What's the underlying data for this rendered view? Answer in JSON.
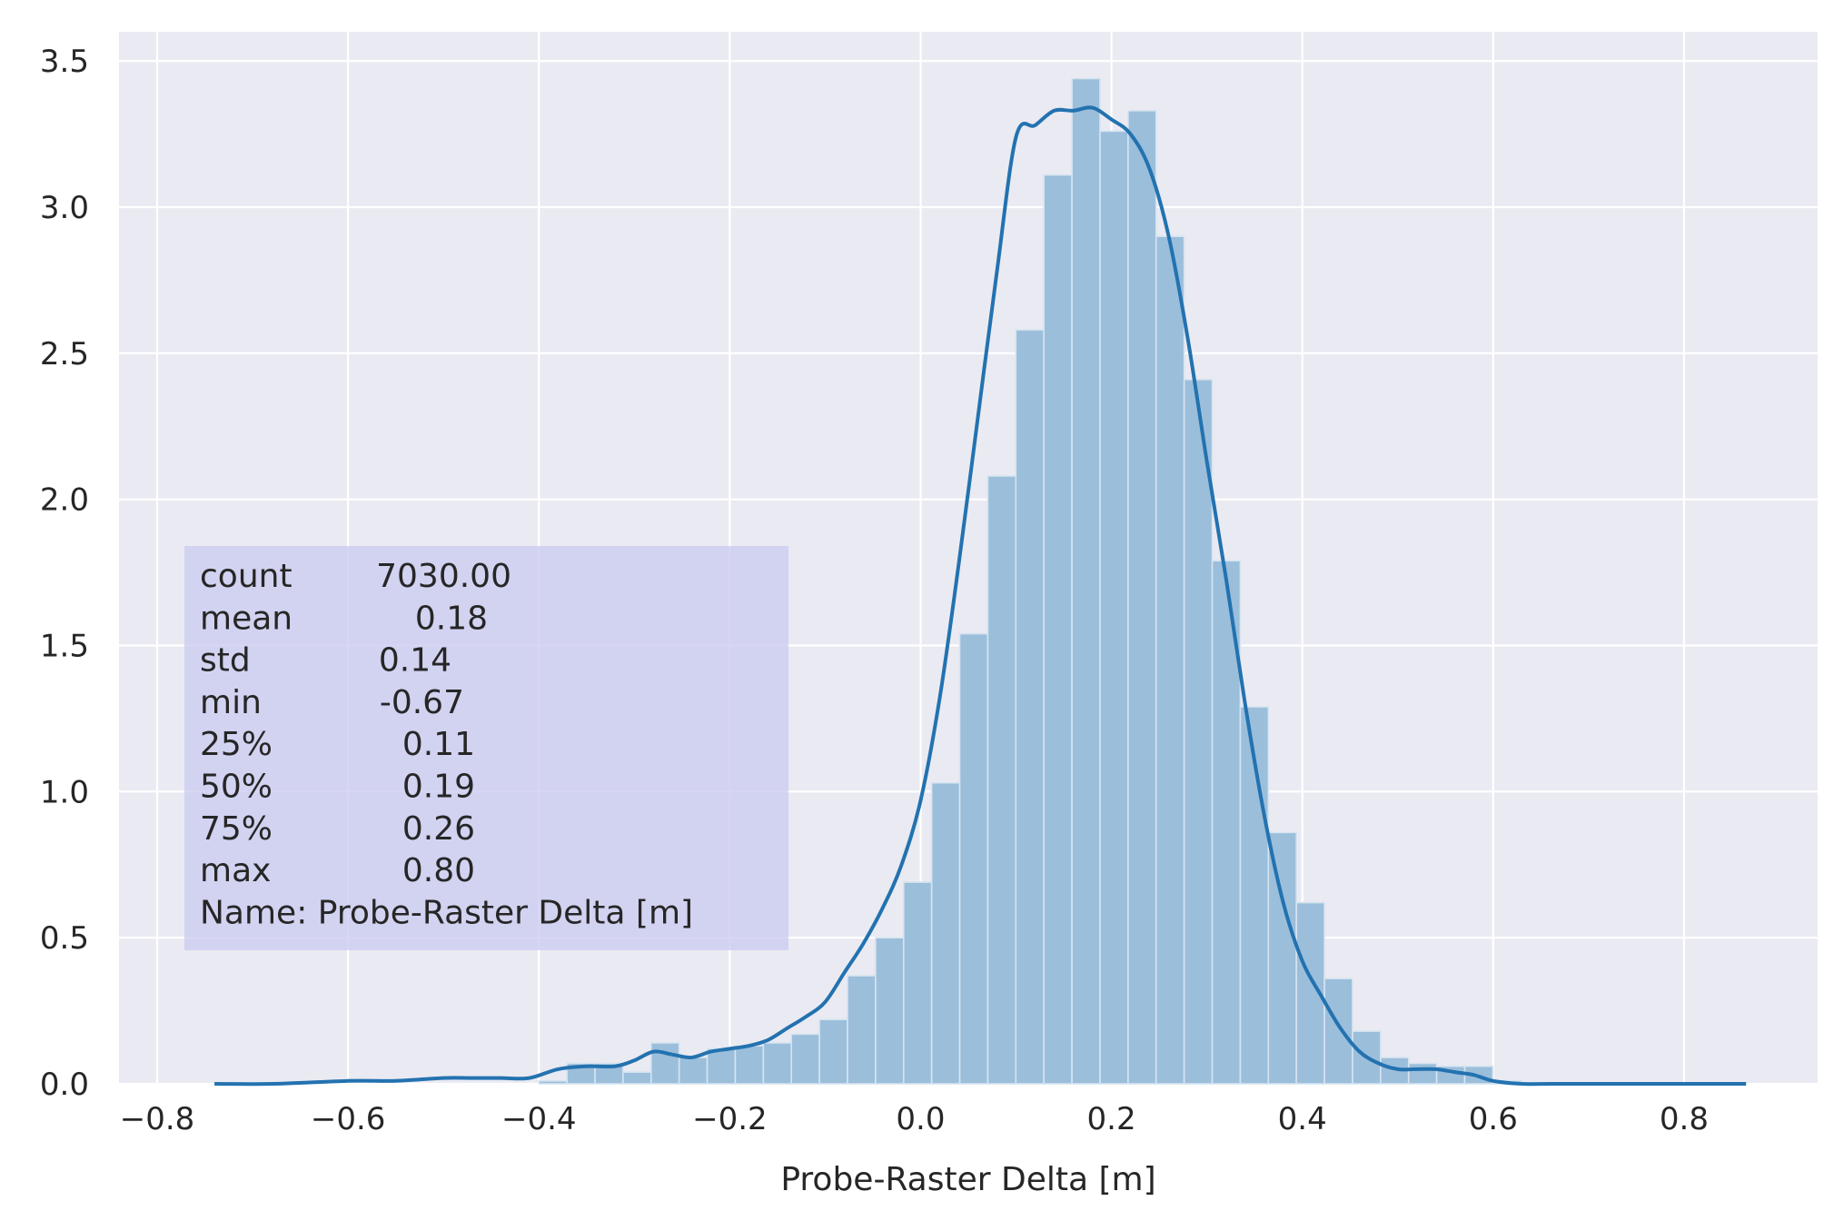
{
  "chart_data": {
    "type": "bar",
    "overlay": "kde-line",
    "title": "",
    "xlabel": "Probe-Raster Delta [m]",
    "ylabel": "",
    "xlim": [
      -0.84,
      0.94
    ],
    "ylim": [
      0,
      3.6
    ],
    "xticks": [
      -0.8,
      -0.6,
      -0.4,
      -0.2,
      0.0,
      0.2,
      0.4,
      0.6,
      0.8
    ],
    "xtick_labels": [
      "−0.8",
      "−0.6",
      "−0.4",
      "−0.2",
      "0.0",
      "0.2",
      "0.4",
      "0.6",
      "0.8"
    ],
    "yticks": [
      0.0,
      0.5,
      1.0,
      1.5,
      2.0,
      2.5,
      3.0,
      3.5
    ],
    "ytick_labels": [
      "0.0",
      "0.5",
      "1.0",
      "1.5",
      "2.0",
      "2.5",
      "3.0",
      "3.5"
    ],
    "grid": true,
    "background": "#eaeaf2",
    "bar_color": "#9bbedb",
    "bar_edge_color": "#d6e4f0",
    "line_color": "#2372b0",
    "histogram": {
      "bin_width": 0.0294,
      "bins": [
        {
          "x0": -0.4,
          "height": 0.01
        },
        {
          "x0": -0.3706,
          "height": 0.07
        },
        {
          "x0": -0.3412,
          "height": 0.07
        },
        {
          "x0": -0.3118,
          "height": 0.04
        },
        {
          "x0": -0.2824,
          "height": 0.14
        },
        {
          "x0": -0.253,
          "height": 0.09
        },
        {
          "x0": -0.2236,
          "height": 0.12
        },
        {
          "x0": -0.1942,
          "height": 0.13
        },
        {
          "x0": -0.1648,
          "height": 0.14
        },
        {
          "x0": -0.1354,
          "height": 0.17
        },
        {
          "x0": -0.106,
          "height": 0.22
        },
        {
          "x0": -0.0766,
          "height": 0.37
        },
        {
          "x0": -0.0472,
          "height": 0.5
        },
        {
          "x0": -0.0178,
          "height": 0.69
        },
        {
          "x0": 0.0116,
          "height": 1.03
        },
        {
          "x0": 0.041,
          "height": 1.54
        },
        {
          "x0": 0.0704,
          "height": 2.08
        },
        {
          "x0": 0.0998,
          "height": 2.58
        },
        {
          "x0": 0.1292,
          "height": 3.11
        },
        {
          "x0": 0.1586,
          "height": 3.44
        },
        {
          "x0": 0.188,
          "height": 3.26
        },
        {
          "x0": 0.2174,
          "height": 3.33
        },
        {
          "x0": 0.2468,
          "height": 2.9
        },
        {
          "x0": 0.2762,
          "height": 2.41
        },
        {
          "x0": 0.3056,
          "height": 1.79
        },
        {
          "x0": 0.335,
          "height": 1.29
        },
        {
          "x0": 0.3644,
          "height": 0.86
        },
        {
          "x0": 0.3938,
          "height": 0.62
        },
        {
          "x0": 0.4232,
          "height": 0.36
        },
        {
          "x0": 0.4526,
          "height": 0.18
        },
        {
          "x0": 0.482,
          "height": 0.09
        },
        {
          "x0": 0.5114,
          "height": 0.07
        },
        {
          "x0": 0.5408,
          "height": 0.06
        },
        {
          "x0": 0.5702,
          "height": 0.06
        },
        {
          "x0": 0.6,
          "height": 0.01
        }
      ]
    },
    "kde": {
      "x": [
        -0.74,
        -0.68,
        -0.6,
        -0.55,
        -0.5,
        -0.47,
        -0.44,
        -0.41,
        -0.38,
        -0.35,
        -0.32,
        -0.3,
        -0.28,
        -0.26,
        -0.24,
        -0.22,
        -0.2,
        -0.18,
        -0.16,
        -0.14,
        -0.12,
        -0.1,
        -0.08,
        -0.06,
        -0.04,
        -0.02,
        0.0,
        0.02,
        0.04,
        0.06,
        0.08,
        0.1,
        0.12,
        0.14,
        0.16,
        0.18,
        0.2,
        0.22,
        0.24,
        0.26,
        0.28,
        0.3,
        0.32,
        0.34,
        0.36,
        0.38,
        0.4,
        0.42,
        0.44,
        0.46,
        0.48,
        0.5,
        0.52,
        0.54,
        0.56,
        0.58,
        0.6,
        0.63,
        0.66,
        0.7,
        0.75,
        0.8,
        0.865
      ],
      "y": [
        0.0,
        0.0,
        0.01,
        0.01,
        0.02,
        0.02,
        0.02,
        0.02,
        0.05,
        0.06,
        0.06,
        0.08,
        0.11,
        0.1,
        0.09,
        0.11,
        0.12,
        0.13,
        0.15,
        0.19,
        0.23,
        0.28,
        0.38,
        0.48,
        0.6,
        0.75,
        0.97,
        1.32,
        1.78,
        2.28,
        2.78,
        3.24,
        3.28,
        3.33,
        3.33,
        3.34,
        3.3,
        3.25,
        3.13,
        2.9,
        2.55,
        2.13,
        1.73,
        1.3,
        0.92,
        0.62,
        0.42,
        0.3,
        0.19,
        0.11,
        0.07,
        0.05,
        0.05,
        0.05,
        0.04,
        0.03,
        0.01,
        0.0,
        0.0,
        0.0,
        0.0,
        0.0,
        0.0
      ]
    },
    "stats_box": {
      "background": "#c9c9f0",
      "lines": [
        {
          "label": "count",
          "value": "7030.00"
        },
        {
          "label": "mean",
          "value": "0.18"
        },
        {
          "label": "std",
          "value": "0.14"
        },
        {
          "label": "min",
          "value": "-0.67"
        },
        {
          "label": "25%",
          "value": "0.11"
        },
        {
          "label": "50%",
          "value": "0.19"
        },
        {
          "label": "75%",
          "value": "0.26"
        },
        {
          "label": "max",
          "value": "0.80"
        }
      ],
      "name_line": "Name: Probe-Raster Delta [m]"
    }
  }
}
